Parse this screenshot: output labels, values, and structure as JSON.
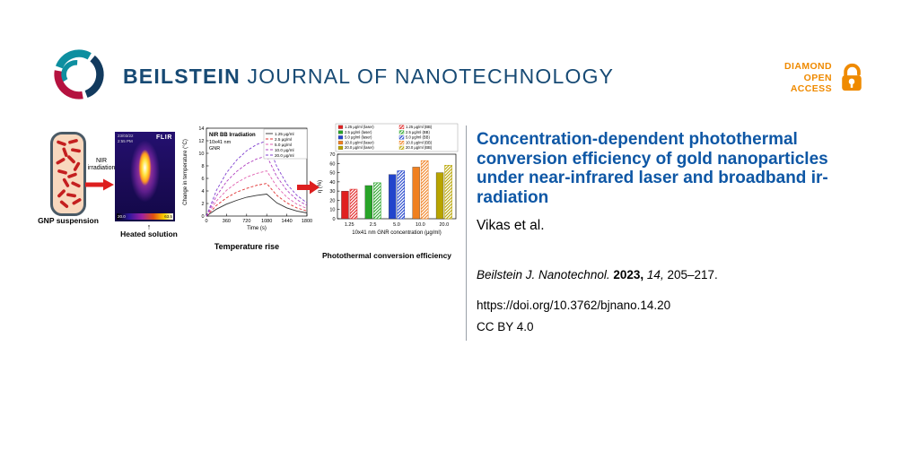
{
  "header": {
    "journal_bold": "BEILSTEIN",
    "journal_rest": " JOURNAL OF NANOTECHNOLOGY",
    "open_access": {
      "line1": "DIAMOND",
      "line2": "OPEN",
      "line3": "ACCESS"
    }
  },
  "abstract": {
    "vial_label": "GNP suspension",
    "nir_label": "NIR irradiation",
    "heated_arrow": "↑",
    "heated_label": "Heated solution",
    "flir": {
      "logo": "FLIR",
      "timestamp_line1": "23/03/22",
      "timestamp_line2": "2:55 PM",
      "scale_min": "20.0",
      "scale_max": "63.5"
    }
  },
  "article": {
    "title": "Concentration-dependent photothermal conversion efficiency of gold nanoparticles under near-infrared laser and broadband irradiation",
    "title_lines": [
      "Concentration-dependent photothermal",
      "conversion efficiency of gold nanoparticles",
      "under near-infrared laser and broadband ir-",
      "radiation"
    ],
    "authors": "Vikas et al.",
    "citation": {
      "journal": "Beilstein J. Nanotechnol.",
      "year": "2023,",
      "volume": "14,",
      "pages": "205–217."
    },
    "doi": "https://doi.org/10.3762/bjnano.14.20",
    "license": "CC BY 4.0"
  },
  "colors": {
    "accent_blue": "#0e57a5",
    "navy": "#174a74",
    "orange": "#ef8a00",
    "arrow_red": "#dd1f1f"
  },
  "chart_data": [
    {
      "id": "temperature_rise",
      "type": "line",
      "title": "NIR BB Irradiation",
      "subtitle_lines": [
        "10x41 nm",
        "GNR"
      ],
      "xlabel": "Time (s)",
      "ylabel": "Change in temperature (°C)",
      "xlim": [
        0,
        1800
      ],
      "ylim": [
        0,
        14
      ],
      "xticks": [
        0,
        360,
        720,
        1080,
        1440,
        1800
      ],
      "yticks": [
        0,
        2,
        4,
        6,
        8,
        10,
        12,
        14
      ],
      "legend_position": "top-right",
      "grid": false,
      "x": [
        0,
        180,
        360,
        540,
        720,
        900,
        1080,
        1260,
        1440,
        1620,
        1800
      ],
      "series": [
        {
          "name": "1.25 μg/ml",
          "color": "#333333",
          "dash": "none",
          "values": [
            0,
            1.1,
            1.9,
            2.5,
            3.0,
            3.3,
            3.5,
            2.1,
            1.3,
            0.8,
            0.5
          ]
        },
        {
          "name": "2.5 μg/ml",
          "color": "#e03030",
          "dash": "3,2",
          "values": [
            0,
            1.7,
            2.9,
            3.8,
            4.4,
            4.9,
            5.2,
            3.3,
            2.1,
            1.3,
            0.8
          ]
        },
        {
          "name": "5.0 μg/ml",
          "color": "#e060b0",
          "dash": "3,2",
          "values": [
            0,
            2.4,
            4.1,
            5.3,
            6.2,
            6.8,
            7.2,
            4.7,
            3.0,
            1.9,
            1.2
          ]
        },
        {
          "name": "10.0 μg/ml",
          "color": "#b040c0",
          "dash": "3,2",
          "values": [
            0,
            3.2,
            5.5,
            7.1,
            8.3,
            9.1,
            9.6,
            6.3,
            4.1,
            2.6,
            1.7
          ]
        },
        {
          "name": "20.0 μg/ml",
          "color": "#8040d0",
          "dash": "3,2",
          "values": [
            0,
            4.1,
            6.9,
            8.9,
            10.4,
            11.4,
            12.0,
            7.9,
            5.1,
            3.3,
            2.1
          ]
        }
      ],
      "caption": "Temperature rise"
    },
    {
      "id": "conversion_efficiency",
      "type": "bar",
      "xlabel": "10x41 nm GNR concentration (μg/ml)",
      "ylabel": "η (%)",
      "ylim": [
        0,
        70
      ],
      "yticks": [
        0,
        10,
        20,
        30,
        40,
        50,
        60,
        70
      ],
      "categories": [
        "1.25",
        "2.5",
        "5.0",
        "10.0",
        "20.0"
      ],
      "category_colors": [
        "#e02020",
        "#28a428",
        "#2244cc",
        "#f08020",
        "#b8a400"
      ],
      "series": [
        {
          "name": "laser",
          "hatch": false,
          "legend": [
            "1.25 μg/ml (laser)",
            "2.5 μg/ml (laser)",
            "5.0 μg/ml (laser)",
            "10.0 μg/ml (laser)",
            "20.0 μg/ml (laser)"
          ],
          "values": [
            30,
            36,
            48,
            56,
            50
          ]
        },
        {
          "name": "BB",
          "hatch": true,
          "legend": [
            "1.25 μg/ml (BB)",
            "2.5 μg/ml (BB)",
            "5.0 μg/ml (BB)",
            "10.0 μg/ml (BB)",
            "20.0 μg/ml (BB)"
          ],
          "values": [
            32,
            39,
            52,
            63,
            58
          ]
        }
      ],
      "caption": "Photothermal conversion efficiency"
    }
  ]
}
